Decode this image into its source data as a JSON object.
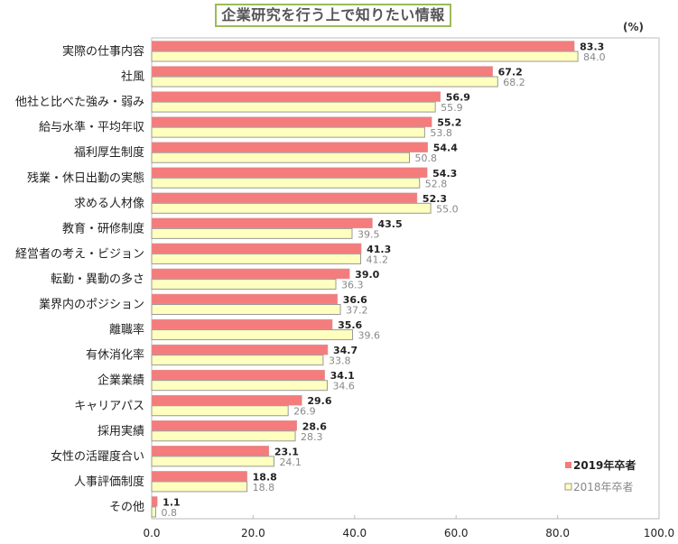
{
  "chart_data": {
    "type": "bar",
    "orientation": "horizontal",
    "title": "企業研究を行う上で知りたい情報",
    "unit": "(%)",
    "categories": [
      "実際の仕事内容",
      "社風",
      "他社と比べた強み・弱み",
      "給与水準・平均年収",
      "福利厚生制度",
      "残業・休日出勤の実態",
      "求める人材像",
      "教育・研修制度",
      "経営者の考え・ビジョン",
      "転勤・異動の多さ",
      "業界内のポジション",
      "離職率",
      "有休消化率",
      "企業業績",
      "キャリアパス",
      "採用実績",
      "女性の活躍度合い",
      "人事評価制度",
      "その他"
    ],
    "series": [
      {
        "name": "2019年卒者",
        "color": "#f47c7c",
        "values": [
          83.3,
          67.2,
          56.9,
          55.2,
          54.4,
          54.3,
          52.3,
          43.5,
          41.3,
          39.0,
          36.6,
          35.6,
          34.7,
          34.1,
          29.6,
          28.6,
          23.1,
          18.8,
          1.1
        ]
      },
      {
        "name": "2018年卒者",
        "color": "#ffffc0",
        "values": [
          84.0,
          68.2,
          55.9,
          53.8,
          50.8,
          52.8,
          55.0,
          39.5,
          41.2,
          36.3,
          37.2,
          39.6,
          33.8,
          34.6,
          26.9,
          28.3,
          24.1,
          18.8,
          0.8
        ]
      }
    ],
    "xlim": [
      0,
      100
    ],
    "xticks": [
      "0.0",
      "20.0",
      "40.0",
      "60.0",
      "80.0",
      "100.0"
    ],
    "grid": false,
    "legend": "bottom-right"
  }
}
